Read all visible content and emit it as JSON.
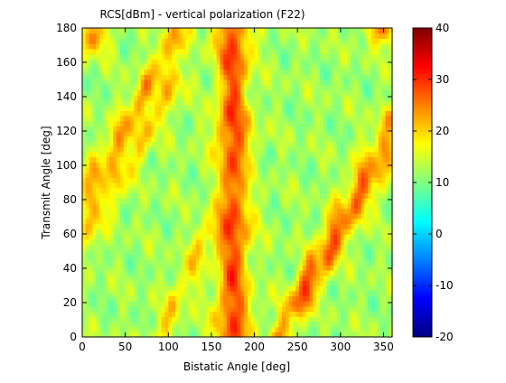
{
  "chart_data": {
    "type": "heatmap",
    "title": "RCS[dBm] - vertical polarization (F22)",
    "xlabel": "Bistatic Angle [deg]",
    "ylabel": "Transmit Angle [deg]",
    "xlim": [
      0,
      360
    ],
    "ylim": [
      0,
      180
    ],
    "x_ticks": [
      0,
      50,
      100,
      150,
      200,
      250,
      300,
      350
    ],
    "y_ticks": [
      0,
      20,
      40,
      60,
      80,
      100,
      120,
      140,
      160,
      180
    ],
    "colorbar": {
      "colormap": "jet",
      "range": [
        -20,
        40
      ],
      "ticks": [
        -20,
        -10,
        0,
        10,
        20,
        30,
        40
      ]
    },
    "value_unit": "dBm",
    "grid": false,
    "features": [
      {
        "kind": "ridge",
        "orientation": "vertical",
        "x_center": 175,
        "x_width": 45,
        "y_range": [
          0,
          180
        ],
        "level": 28
      },
      {
        "kind": "band",
        "orientation": "diagonal",
        "from": [
          0,
          80
        ],
        "to": [
          115,
          180
        ],
        "level": 24
      },
      {
        "kind": "band",
        "orientation": "diagonal",
        "from": [
          0,
          55
        ],
        "to": [
          110,
          150
        ],
        "level": 21
      },
      {
        "kind": "band",
        "orientation": "diagonal",
        "from": [
          230,
          0
        ],
        "to": [
          360,
          110
        ],
        "level": 24
      },
      {
        "kind": "band",
        "orientation": "diagonal",
        "from": [
          245,
          20
        ],
        "to": [
          360,
          130
        ],
        "level": 21
      },
      {
        "kind": "band",
        "orientation": "diagonal",
        "from": [
          90,
          0
        ],
        "to": [
          145,
          60
        ],
        "level": 20
      },
      {
        "kind": "spot",
        "x": 350,
        "y": 180,
        "level": 25
      },
      {
        "kind": "spot",
        "x": 10,
        "y": 175,
        "level": 25
      }
    ],
    "background_level": 12
  }
}
